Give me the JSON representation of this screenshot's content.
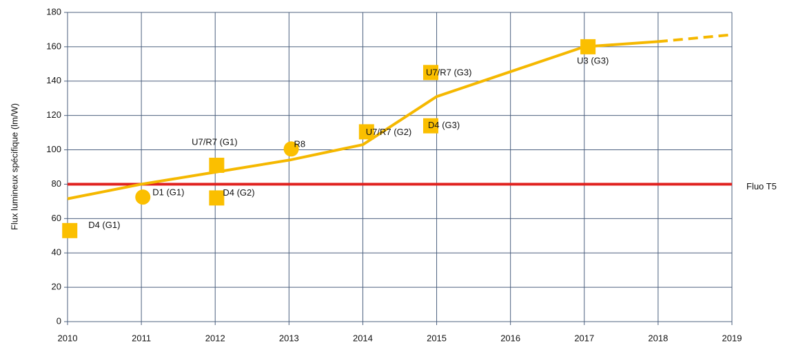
{
  "chart_data": {
    "type": "line",
    "y_label": "Flux lumineux spécifique (lm/W)",
    "x": [
      2010,
      2011,
      2012,
      2013,
      2014,
      2015,
      2016,
      2017,
      2018,
      2019
    ],
    "series": [
      {
        "color": "#f5b800",
        "dashed": false,
        "values": [
          71.5,
          80,
          87,
          94,
          103,
          131,
          145.5,
          160,
          163,
          null
        ]
      },
      {
        "color": "#f5b800",
        "dashed": true,
        "values": [
          null,
          null,
          null,
          null,
          null,
          null,
          null,
          null,
          163,
          167
        ]
      }
    ],
    "reference": {
      "label": "Fluo T5",
      "value": 80,
      "color": "#e0221f"
    },
    "points": [
      {
        "label": "D4 (G1)",
        "x": 2010.03,
        "y": 53,
        "marker": "square"
      },
      {
        "label": "D1 (G1)",
        "x": 2011.02,
        "y": 72.5,
        "marker": "circle"
      },
      {
        "label": "U7/R7 (G1)",
        "x": 2012.02,
        "y": 91,
        "marker": "square"
      },
      {
        "label": "D4 (G2)",
        "x": 2012.02,
        "y": 72,
        "marker": "square"
      },
      {
        "label": "R8",
        "x": 2013.03,
        "y": 100.5,
        "marker": "circle"
      },
      {
        "label": "U7/R7 (G2)",
        "x": 2014.05,
        "y": 110.5,
        "marker": "square"
      },
      {
        "label": "U7/R7 (G3)",
        "x": 2014.92,
        "y": 145,
        "marker": "square"
      },
      {
        "label": "D4 (G3)",
        "x": 2014.92,
        "y": 114,
        "marker": "square"
      },
      {
        "label": "U3 (G3)",
        "x": 2017.05,
        "y": 160,
        "marker": "square"
      }
    ],
    "point_color": "#fbbf00",
    "xlim": [
      2010,
      2019
    ],
    "xticks": [
      2010,
      2011,
      2012,
      2013,
      2014,
      2015,
      2016,
      2017,
      2018,
      2019
    ],
    "ylim": [
      0,
      180
    ],
    "yticks": [
      0,
      20,
      40,
      60,
      80,
      100,
      120,
      140,
      160,
      180
    ],
    "grid": true
  }
}
